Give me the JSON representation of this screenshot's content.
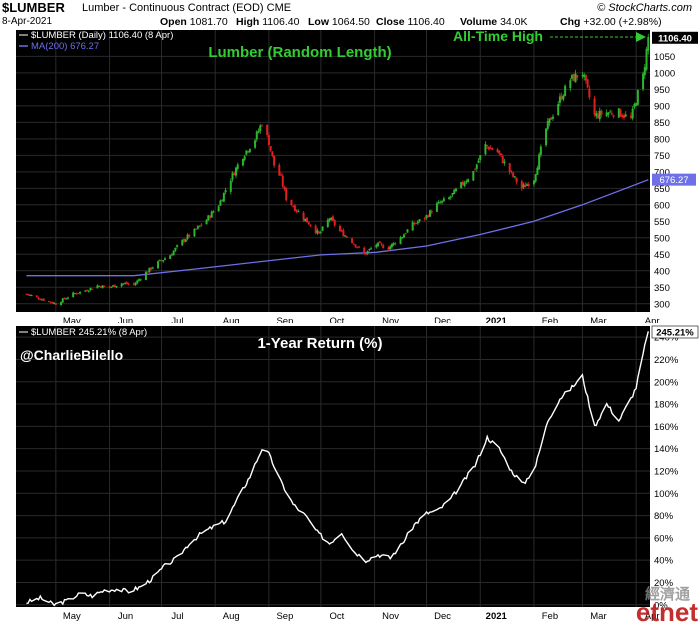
{
  "header": {
    "symbol": "$LUMBER",
    "name": "Lumber - Continuous Contract (EOD)",
    "exchange": "CME",
    "brand": "© StockCharts.com",
    "date": "8-Apr-2021",
    "open_label": "Open",
    "open": "1081.70",
    "high_label": "High",
    "high": "1106.40",
    "low_label": "Low",
    "low": "1064.50",
    "close_label": "Close",
    "close": "1106.40",
    "volume_label": "Volume",
    "volume": "34.0K",
    "chg_label": "Chg",
    "chg": "+32.00 (+2.98%)"
  },
  "panel_top": {
    "legend_price": "$LUMBER (Daily) 1106.40 (8 Apr)",
    "legend_ma": "MA(200) 676.27",
    "title": "Lumber (Random Length)",
    "annotation": "All-Time High",
    "price_tag": "1106.40",
    "ma_tag": "676.27"
  },
  "panel_bottom": {
    "legend": "$LUMBER 245.21% (8 Apr)",
    "title": "1-Year Return (%)",
    "author": "@CharlieBilello",
    "value_tag": "245.21%"
  },
  "watermark": {
    "cn": "經濟通",
    "brand": "etnet"
  },
  "colors": {
    "background": "#000000",
    "up_candle": "#2db52d",
    "down_candle": "#e02020",
    "ma_line": "#6f6fe8",
    "return_line": "#ffffff",
    "title_green": "#33cc33",
    "grid": "#2a2a2a"
  },
  "chart_data": [
    {
      "type": "candlestick",
      "title": "Lumber (Random Length)",
      "ylim": [
        275,
        1130
      ],
      "y_ticks": [
        300,
        350,
        400,
        450,
        500,
        550,
        600,
        650,
        700,
        750,
        800,
        850,
        900,
        950,
        1000,
        1050
      ],
      "x_ticks": [
        "May",
        "Jun",
        "Jul",
        "Aug",
        "Sep",
        "Oct",
        "Nov",
        "Dec",
        "2021",
        "Feb",
        "Mar",
        "Apr"
      ],
      "close_path": [
        [
          "2020-04-14",
          330
        ],
        [
          "2020-04-24",
          312
        ],
        [
          "2020-05-01",
          300
        ],
        [
          "2020-05-11",
          330
        ],
        [
          "2020-05-18",
          340
        ],
        [
          "2020-05-25",
          355
        ],
        [
          "2020-06-01",
          350
        ],
        [
          "2020-06-08",
          362
        ],
        [
          "2020-06-15",
          358
        ],
        [
          "2020-06-22",
          395
        ],
        [
          "2020-06-29",
          425
        ],
        [
          "2020-07-06",
          448
        ],
        [
          "2020-07-13",
          490
        ],
        [
          "2020-07-20",
          520
        ],
        [
          "2020-07-27",
          555
        ],
        [
          "2020-08-03",
          600
        ],
        [
          "2020-08-10",
          680
        ],
        [
          "2020-08-17",
          750
        ],
        [
          "2020-08-24",
          800
        ],
        [
          "2020-08-28",
          850
        ],
        [
          "2020-09-01",
          790
        ],
        [
          "2020-09-04",
          720
        ],
        [
          "2020-09-08",
          680
        ],
        [
          "2020-09-11",
          620
        ],
        [
          "2020-09-16",
          590
        ],
        [
          "2020-09-21",
          560
        ],
        [
          "2020-09-25",
          540
        ],
        [
          "2020-09-30",
          510
        ],
        [
          "2020-10-06",
          560
        ],
        [
          "2020-10-12",
          520
        ],
        [
          "2020-10-19",
          490
        ],
        [
          "2020-10-26",
          450
        ],
        [
          "2020-11-02",
          480
        ],
        [
          "2020-11-09",
          470
        ],
        [
          "2020-11-16",
          500
        ],
        [
          "2020-11-23",
          540
        ],
        [
          "2020-11-30",
          560
        ],
        [
          "2020-12-07",
          600
        ],
        [
          "2020-12-14",
          620
        ],
        [
          "2020-12-21",
          660
        ],
        [
          "2020-12-28",
          700
        ],
        [
          "2021-01-04",
          780
        ],
        [
          "2021-01-11",
          760
        ],
        [
          "2021-01-18",
          700
        ],
        [
          "2021-01-25",
          650
        ],
        [
          "2021-02-01",
          680
        ],
        [
          "2021-02-08",
          830
        ],
        [
          "2021-02-15",
          910
        ],
        [
          "2021-02-22",
          980
        ],
        [
          "2021-03-01",
          1000
        ],
        [
          "2021-03-08",
          870
        ],
        [
          "2021-03-15",
          880
        ],
        [
          "2021-03-22",
          880
        ],
        [
          "2021-03-29",
          860
        ],
        [
          "2021-04-01",
          920
        ],
        [
          "2021-04-05",
          990
        ],
        [
          "2021-04-08",
          1106.4
        ]
      ],
      "ma200_path": [
        [
          "2020-04-14",
          385
        ],
        [
          "2020-06-15",
          385
        ],
        [
          "2020-07-20",
          405
        ],
        [
          "2020-08-31",
          430
        ],
        [
          "2020-10-01",
          448
        ],
        [
          "2020-11-02",
          456
        ],
        [
          "2020-12-01",
          475
        ],
        [
          "2021-01-01",
          510
        ],
        [
          "2021-02-01",
          550
        ],
        [
          "2021-03-01",
          600
        ],
        [
          "2021-04-08",
          676.27
        ]
      ],
      "last_close": 1106.4,
      "ma_last": 676.27
    },
    {
      "type": "line",
      "title": "1-Year Return (%)",
      "series": [
        {
          "name": "$LUMBER",
          "last": 245.21
        }
      ],
      "ylim": [
        -2,
        250
      ],
      "y_ticks": [
        0,
        20,
        40,
        60,
        80,
        100,
        120,
        140,
        160,
        180,
        200,
        220,
        240
      ],
      "x_ticks": [
        "May",
        "Jun",
        "Jul",
        "Aug",
        "Sep",
        "Oct",
        "Nov",
        "Dec",
        "2021",
        "Feb",
        "Mar",
        "Apr"
      ],
      "points": [
        [
          "2020-04-14",
          2
        ],
        [
          "2020-04-22",
          6
        ],
        [
          "2020-04-30",
          0
        ],
        [
          "2020-05-08",
          4
        ],
        [
          "2020-05-15",
          10
        ],
        [
          "2020-05-22",
          8
        ],
        [
          "2020-05-29",
          13
        ],
        [
          "2020-06-05",
          14
        ],
        [
          "2020-06-12",
          12
        ],
        [
          "2020-06-19",
          16
        ],
        [
          "2020-06-26",
          24
        ],
        [
          "2020-07-03",
          35
        ],
        [
          "2020-07-10",
          42
        ],
        [
          "2020-07-17",
          55
        ],
        [
          "2020-07-24",
          64
        ],
        [
          "2020-07-31",
          70
        ],
        [
          "2020-08-07",
          75
        ],
        [
          "2020-08-14",
          95
        ],
        [
          "2020-08-21",
          115
        ],
        [
          "2020-08-28",
          140
        ],
        [
          "2020-09-01",
          135
        ],
        [
          "2020-09-08",
          110
        ],
        [
          "2020-09-15",
          90
        ],
        [
          "2020-09-22",
          80
        ],
        [
          "2020-09-29",
          65
        ],
        [
          "2020-10-06",
          55
        ],
        [
          "2020-10-13",
          65
        ],
        [
          "2020-10-20",
          48
        ],
        [
          "2020-10-27",
          40
        ],
        [
          "2020-11-03",
          45
        ],
        [
          "2020-11-10",
          42
        ],
        [
          "2020-11-17",
          55
        ],
        [
          "2020-11-24",
          72
        ],
        [
          "2020-12-01",
          82
        ],
        [
          "2020-12-08",
          85
        ],
        [
          "2020-12-15",
          95
        ],
        [
          "2020-12-22",
          110
        ],
        [
          "2020-12-29",
          125
        ],
        [
          "2021-01-05",
          150
        ],
        [
          "2021-01-12",
          140
        ],
        [
          "2021-01-19",
          120
        ],
        [
          "2021-01-26",
          108
        ],
        [
          "2021-02-02",
          125
        ],
        [
          "2021-02-09",
          165
        ],
        [
          "2021-02-16",
          185
        ],
        [
          "2021-02-23",
          195
        ],
        [
          "2021-03-01",
          205
        ],
        [
          "2021-03-08",
          160
        ],
        [
          "2021-03-15",
          180
        ],
        [
          "2021-03-22",
          165
        ],
        [
          "2021-03-29",
          185
        ],
        [
          "2021-04-01",
          195
        ],
        [
          "2021-04-05",
          225
        ],
        [
          "2021-04-08",
          245.21
        ]
      ]
    }
  ]
}
